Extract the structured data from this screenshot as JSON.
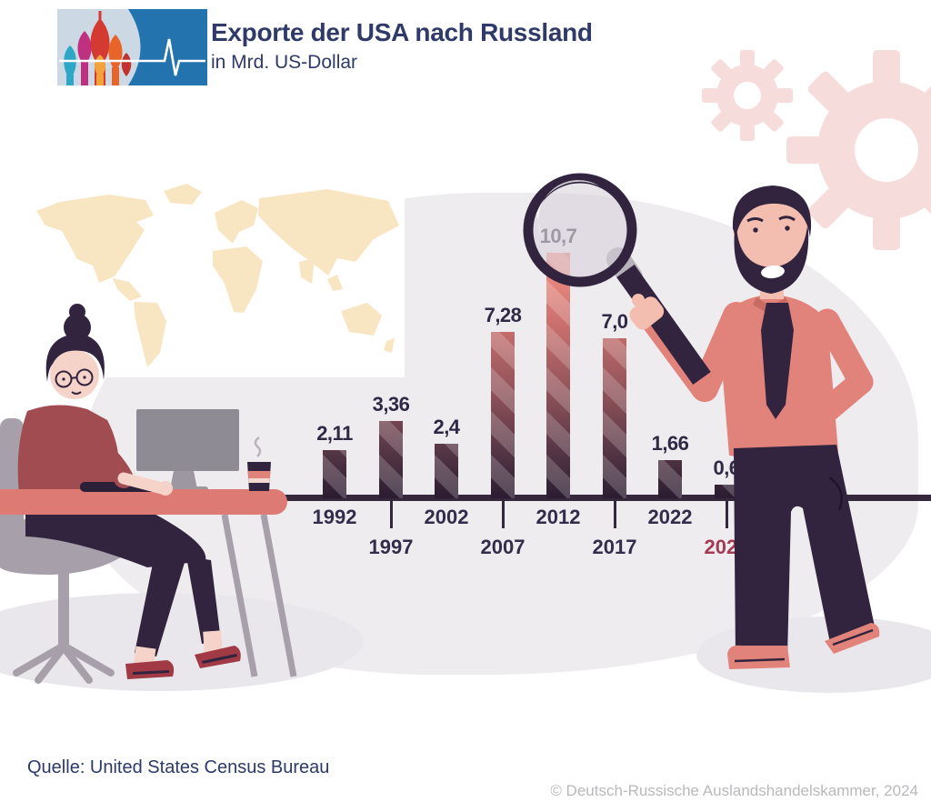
{
  "header": {
    "title": "Exporte der USA nach Russland",
    "subtitle": "in Mrd. US-Dollar",
    "logo_icon": "russian-cathedral-pulse-logo"
  },
  "chart_data": {
    "type": "bar",
    "title": "Exporte der USA nach Russland",
    "ylabel": "Mrd. US-Dollar",
    "categories": [
      "1992",
      "1997",
      "2002",
      "2007",
      "2012",
      "2017",
      "2022",
      "2023"
    ],
    "values": [
      2.11,
      3.36,
      2.4,
      7.28,
      10.7,
      7.0,
      1.66,
      0.6
    ],
    "value_labels": [
      "2,11",
      "3,36",
      "2,4",
      "7,28",
      "10,7",
      "7,0",
      "1,66",
      "0,6"
    ],
    "ylim": [
      0,
      11
    ],
    "grid": false,
    "legend": "none",
    "highlight_category": "2023",
    "lens_over_index": 4,
    "axis_style": "timeline with alternating year rows and ticks under lower-row years"
  },
  "footer": {
    "source": "Quelle: United States Census Bureau",
    "copyright": "© Deutsch-Russische Auslandshandelskammer, 2024"
  },
  "colors": {
    "title_navy": "#2f3a68",
    "bar_top_salmon": "#ef8d82",
    "bar_bottom_purple": "#2b1c31",
    "baseline_dark": "#35283c",
    "year_label": "#332c4b",
    "highlight_year_red": "#a43b55",
    "background_blob": "#efecef",
    "gear_pink": "#f7dcdc",
    "map_cream": "#f8e5c1",
    "desk_salmon": "#dd7a74",
    "logo_blue": "#2273ae"
  },
  "decor_icons": [
    "world-map-icon",
    "gear-icon",
    "magnifying-glass-icon",
    "woman-at-desk-illustration",
    "man-with-magnifier-illustration"
  ]
}
